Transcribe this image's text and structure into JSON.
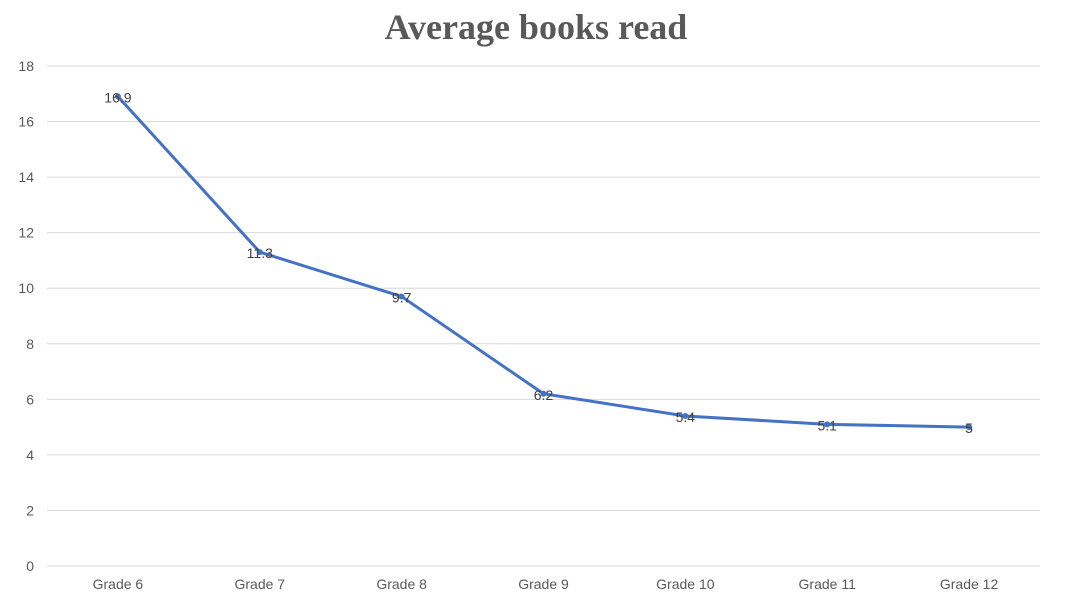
{
  "chart_data": {
    "type": "line",
    "title": "Average books read",
    "xlabel": "",
    "ylabel": "",
    "categories": [
      "Grade 6",
      "Grade 7",
      "Grade 8",
      "Grade 9",
      "Grade 10",
      "Grade 11",
      "Grade 12"
    ],
    "series": [
      {
        "values": [
          16.9,
          11.3,
          9.7,
          6.2,
          5.4,
          5.1,
          5
        ]
      }
    ],
    "data_labels": [
      "16.9",
      "11.3",
      "9.7",
      "6.2",
      "5.4",
      "5.1",
      "5"
    ],
    "ylim": [
      0,
      18
    ],
    "yticks": [
      0,
      2,
      4,
      6,
      8,
      10,
      12,
      14,
      16,
      18
    ],
    "grid": true,
    "legend": "none",
    "colors": {
      "line": "#4472C4",
      "grid": "#D9D9D9",
      "text": "#595959"
    }
  }
}
